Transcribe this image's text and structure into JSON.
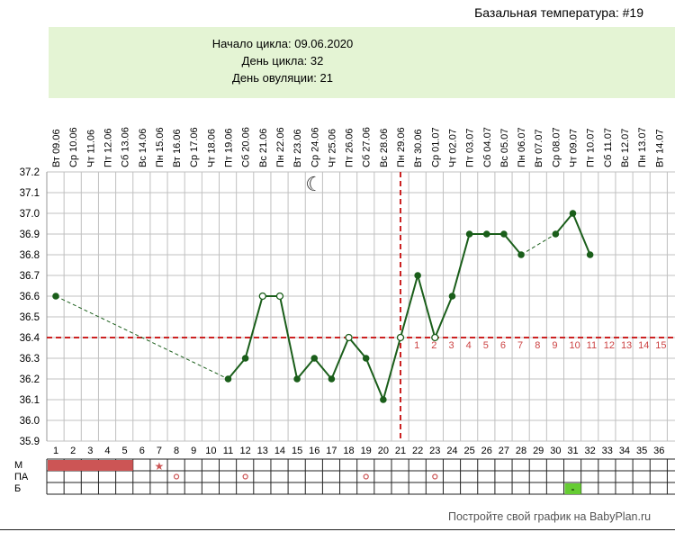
{
  "header": {
    "title": "Базальная температура: #19"
  },
  "info": {
    "cycle_start": "Начало цикла: 09.06.2020",
    "cycle_day": "День цикла: 32",
    "ovulation_day": "День овуляции: 21"
  },
  "footer": {
    "text": "Постройте свой график на BabyPlan.ru"
  },
  "colors": {
    "line": "#1a5e1a",
    "grid": "#c0c0c0",
    "coverline": "#cc2222",
    "period": "#cc5555",
    "highlight_cell": "#66cc33",
    "info_bg": "#e4f4d4",
    "post_ov_labels": "#cc4444"
  },
  "icons": {
    "moon": "moon-icon",
    "star": "star-icon"
  },
  "chart_data": {
    "type": "line",
    "title": "Базальная температура: #19",
    "dates": [
      "Вт 09.06",
      "Ср 10.06",
      "Чт 11.06",
      "Пт 12.06",
      "Сб 13.06",
      "Вс 14.06",
      "Пн 15.06",
      "Вт 16.06",
      "Ср 17.06",
      "Чт 18.06",
      "Пт 19.06",
      "Сб 20.06",
      "Вс 21.06",
      "Пн 22.06",
      "Вт 23.06",
      "Ср 24.06",
      "Чт 25.06",
      "Пт 26.06",
      "Сб 27.06",
      "Вс 28.06",
      "Пн 29.06",
      "Вт 30.06",
      "Ср 01.07",
      "Чт 02.07",
      "Пт 03.07",
      "Сб 04.07",
      "Вс 05.07",
      "Пн 06.07",
      "Вт 07.07",
      "Ср 08.07",
      "Чт 09.07",
      "Пт 10.07",
      "Сб 11.07",
      "Вс 12.07",
      "Пн 13.07",
      "Вт 14.07"
    ],
    "days": [
      "1",
      "2",
      "3",
      "4",
      "5",
      "6",
      "7",
      "8",
      "9",
      "10",
      "11",
      "12",
      "13",
      "14",
      "15",
      "16",
      "17",
      "18",
      "19",
      "20",
      "21",
      "22",
      "23",
      "24",
      "25",
      "26",
      "27",
      "28",
      "29",
      "30",
      "31",
      "32",
      "33",
      "34",
      "35",
      "36"
    ],
    "y_ticks": [
      "37.2",
      "37.1",
      "37.0",
      "36.9",
      "36.8",
      "36.7",
      "36.6",
      "36.5",
      "36.4",
      "36.3",
      "36.2",
      "36.1",
      "36.0",
      "35.9"
    ],
    "ylim": [
      35.9,
      37.2
    ],
    "coverline": 36.4,
    "ovulation_day": 21,
    "points": [
      {
        "day": 1,
        "temp": 36.6
      },
      {
        "day": 11,
        "temp": 36.2
      },
      {
        "day": 12,
        "temp": 36.3
      },
      {
        "day": 13,
        "temp": 36.6,
        "hollow": true
      },
      {
        "day": 14,
        "temp": 36.6,
        "hollow": true
      },
      {
        "day": 15,
        "temp": 36.2
      },
      {
        "day": 16,
        "temp": 36.3
      },
      {
        "day": 17,
        "temp": 36.2
      },
      {
        "day": 18,
        "temp": 36.4,
        "hollow": true
      },
      {
        "day": 19,
        "temp": 36.3
      },
      {
        "day": 20,
        "temp": 36.1
      },
      {
        "day": 21,
        "temp": 36.4,
        "hollow": true
      },
      {
        "day": 22,
        "temp": 36.7
      },
      {
        "day": 23,
        "temp": 36.4,
        "hollow": true
      },
      {
        "day": 24,
        "temp": 36.6
      },
      {
        "day": 25,
        "temp": 36.9
      },
      {
        "day": 26,
        "temp": 36.9
      },
      {
        "day": 27,
        "temp": 36.9
      },
      {
        "day": 28,
        "temp": 36.8
      },
      {
        "day": 30,
        "temp": 36.9
      },
      {
        "day": 31,
        "temp": 37.0
      },
      {
        "day": 32,
        "temp": 36.8
      }
    ],
    "dashed_segments": [
      [
        1,
        11
      ],
      [
        28,
        30
      ]
    ],
    "post_ov_labels": [
      "1",
      "2",
      "3",
      "4",
      "5",
      "6",
      "7",
      "8",
      "9",
      "10",
      "11",
      "12",
      "13",
      "14",
      "15"
    ],
    "moon_day": 16,
    "bottom_rows": {
      "labels": [
        "М",
        "ПА",
        "Б"
      ],
      "menstruation_days": [
        1,
        2,
        3,
        4,
        5
      ],
      "star_day": 7,
      "pa_marks": [
        {
          "day": 8,
          "symbol": "o"
        },
        {
          "day": 12,
          "symbol": "o"
        },
        {
          "day": 19,
          "symbol": "o"
        },
        {
          "day": 23,
          "symbol": "o"
        }
      ],
      "b_marks": [
        {
          "day": 31,
          "symbol": "-"
        }
      ]
    }
  }
}
